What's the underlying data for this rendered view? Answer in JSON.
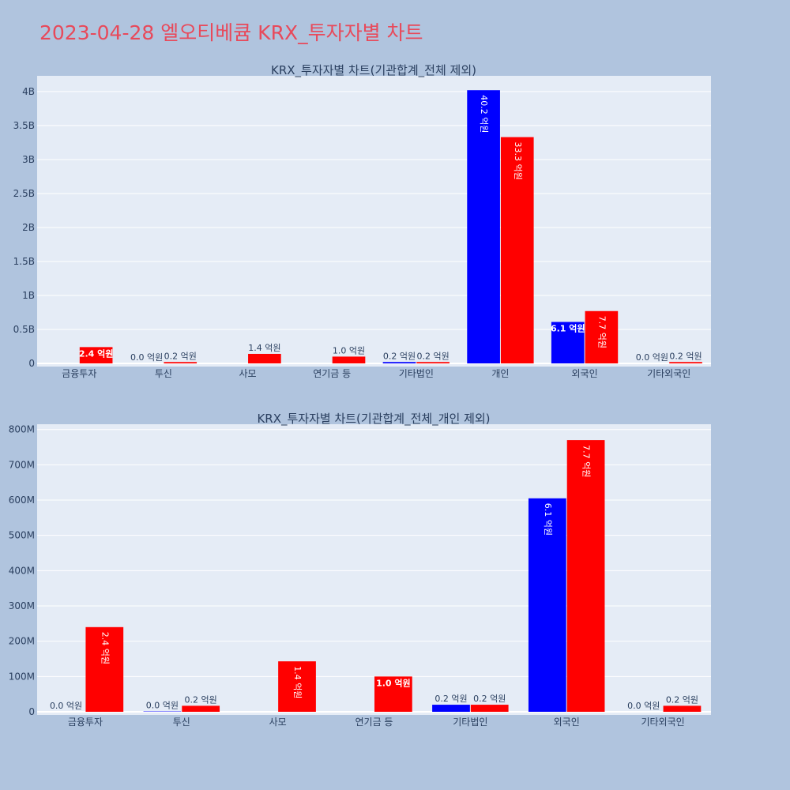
{
  "title": "2023-04-28 엘오티베큠 KRX_투자자별 차트",
  "colors": {
    "buy": "#0000ff",
    "sell": "#ff0000",
    "title": "#e8495a"
  },
  "chart_data": [
    {
      "type": "bar",
      "title": "KRX_투자자별 차트(기관합계_전체 제외)",
      "categories": [
        "금융투자",
        "투신",
        "사모",
        "연기금 등",
        "기타법인",
        "개인",
        "외국인",
        "기타외국인"
      ],
      "series": [
        {
          "color": "#0000ff",
          "values": [
            0,
            1000000,
            0,
            0,
            20000000,
            4020000000,
            610000000,
            0
          ],
          "labels": [
            "",
            "0.0 억원",
            "",
            "",
            "0.2 억원",
            "40.2 억원",
            "6.1 억원",
            "0.0 억원"
          ]
        },
        {
          "color": "#ff0000",
          "values": [
            240000000,
            20000000,
            140000000,
            100000000,
            20000000,
            3330000000,
            770000000,
            20000000
          ],
          "labels": [
            "2.4 억원",
            "0.2 억원",
            "1.4 억원",
            "1.0 억원",
            "0.2 억원",
            "33.3 억원",
            "7.7 억원",
            "0.2 억원"
          ]
        }
      ],
      "yticks": [
        "0",
        "0.5B",
        "1B",
        "1.5B",
        "2B",
        "2.5B",
        "3B",
        "3.5B",
        "4B"
      ],
      "ytick_values": [
        0,
        500000000,
        1000000000,
        1500000000,
        2000000000,
        2500000000,
        3000000000,
        3500000000,
        4000000000
      ],
      "ylim": [
        0,
        4231578947
      ],
      "grid": true
    },
    {
      "type": "bar",
      "title": "KRX_투자자별 차트(기관합계_전체_개인 제외)",
      "categories": [
        "금융투자",
        "투신",
        "사모",
        "연기금 등",
        "기타법인",
        "외국인",
        "기타외국인"
      ],
      "series": [
        {
          "color": "#0000ff",
          "values": [
            0,
            1000000,
            0,
            0,
            20000000,
            605000000,
            0
          ],
          "labels": [
            "0.0 억원",
            "0.0 억원",
            "",
            "",
            "0.2 억원",
            "6.1 억원",
            "0.0 억원"
          ]
        },
        {
          "color": "#ff0000",
          "values": [
            240000000,
            17000000,
            143000000,
            100000000,
            20000000,
            770000000,
            17000000
          ],
          "labels": [
            "2.4 억원",
            "0.2 억원",
            "1.4 억원",
            "1.0 억원",
            "0.2 억원",
            "7.7 억원",
            "0.2 억원"
          ]
        }
      ],
      "yticks": [
        "0",
        "100M",
        "200M",
        "300M",
        "400M",
        "500M",
        "600M",
        "700M",
        "800M"
      ],
      "ytick_values": [
        0,
        100000000,
        200000000,
        300000000,
        400000000,
        500000000,
        600000000,
        700000000,
        800000000
      ],
      "ylim": [
        0,
        815000000
      ],
      "grid": true
    }
  ]
}
